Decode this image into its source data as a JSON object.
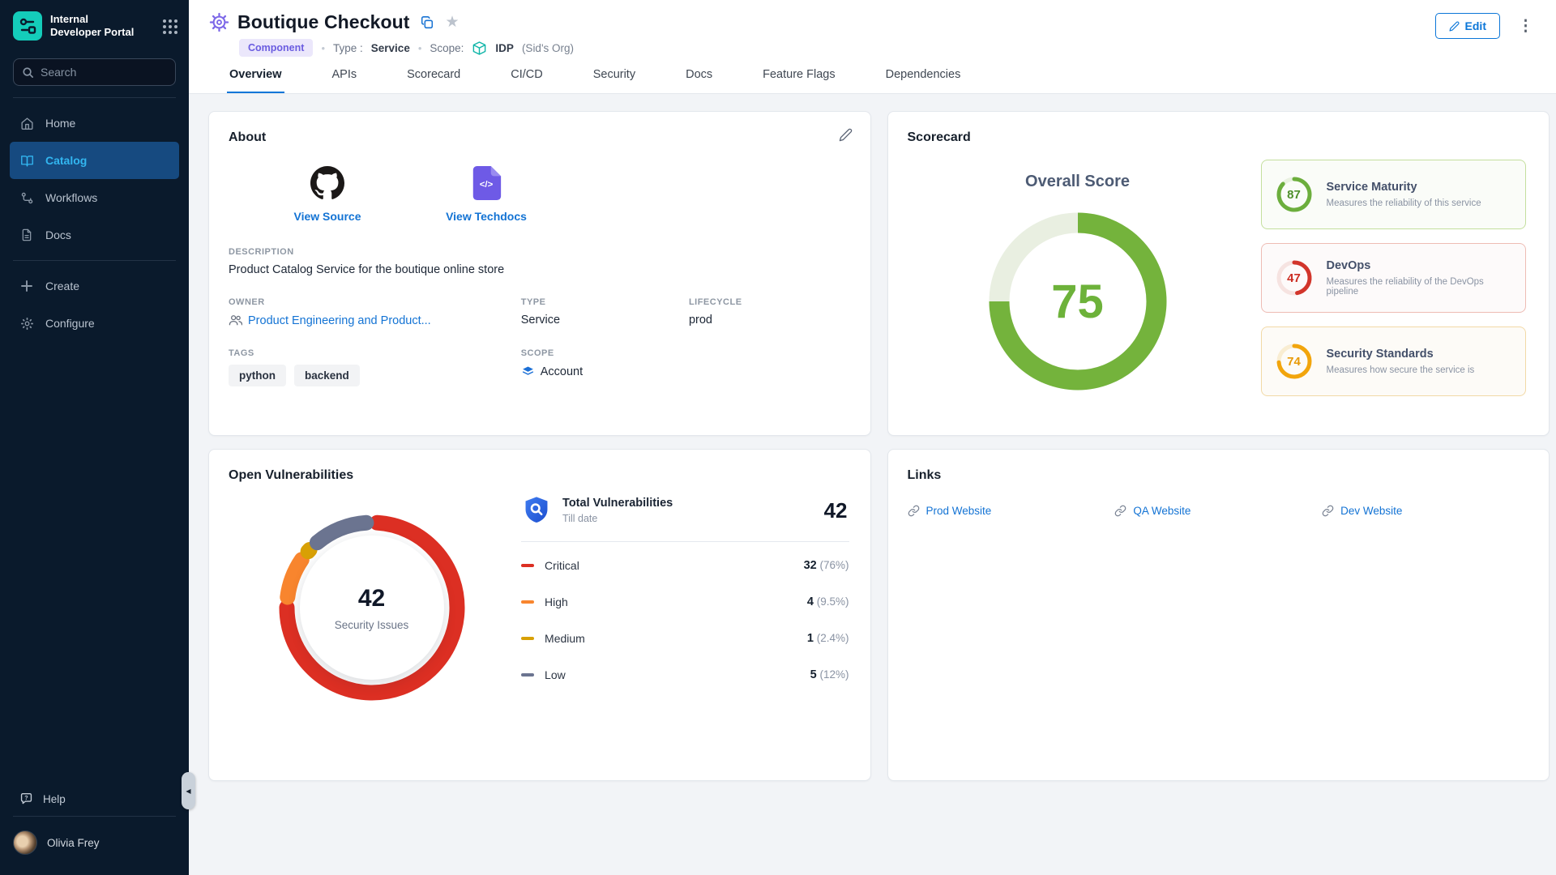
{
  "sidebar": {
    "logo_lines": [
      "Internal",
      "Developer Portal"
    ],
    "search_placeholder": "Search",
    "nav": [
      {
        "label": "Home",
        "active": false
      },
      {
        "label": "Catalog",
        "active": true
      },
      {
        "label": "Workflows",
        "active": false
      },
      {
        "label": "Docs",
        "active": false
      }
    ],
    "actions": [
      {
        "label": "Create"
      },
      {
        "label": "Configure"
      }
    ],
    "help_label": "Help",
    "user_name": "Olivia Frey"
  },
  "header": {
    "title": "Boutique Checkout",
    "kind_badge": "Component",
    "type_label": "Type :",
    "type_value": "Service",
    "scope_label": "Scope:",
    "scope_value": "IDP",
    "scope_org": "(Sid's Org)",
    "edit_label": "Edit"
  },
  "tabs": {
    "items": [
      "Overview",
      "APIs",
      "Scorecard",
      "CI/CD",
      "Security",
      "Docs",
      "Feature Flags",
      "Dependencies"
    ],
    "active_index": 0
  },
  "about": {
    "title": "About",
    "source_label": "View Source",
    "techdocs_label": "View Techdocs",
    "fields": {
      "description_label": "DESCRIPTION",
      "description": "Product Catalog Service for the boutique online store",
      "owner_label": "OWNER",
      "owner": "Product Engineering and Product...",
      "type_label": "TYPE",
      "type": "Service",
      "lifecycle_label": "LIFECYCLE",
      "lifecycle": "prod",
      "tags_label": "TAGS",
      "tags": [
        "python",
        "backend"
      ],
      "scope_label": "SCOPE",
      "scope": "Account"
    }
  },
  "scorecard": {
    "title": "Scorecard",
    "overall_label": "Overall Score",
    "overall": {
      "value": 75,
      "max": 100,
      "color": "#74b33c",
      "track_color": "#e9efe1",
      "text_color": "#6db23a"
    },
    "checks": [
      {
        "name": "Service Maturity",
        "desc": "Measures the reliability of this service",
        "score": 87,
        "ring_color": "#6cae3d",
        "ring_track": "#e9f1e0",
        "text_color": "#4e8f2b",
        "border_color": "#c4df9e",
        "bg": "#fafcf8"
      },
      {
        "name": "DevOps",
        "desc": "Measures the reliability of the DevOps pipeline",
        "score": 47,
        "ring_color": "#d2352b",
        "ring_track": "#f6e3e1",
        "text_color": "#cc2d23",
        "border_color": "#eebcb4",
        "bg": "#fdfafa"
      },
      {
        "name": "Security Standards",
        "desc": "Measures how secure the service is",
        "score": 74,
        "ring_color": "#f2a50c",
        "ring_track": "#f9edd2",
        "text_color": "#e89a06",
        "border_color": "#f2d9a6",
        "bg": "#fdfbf7"
      }
    ]
  },
  "vulnerabilities": {
    "title": "Open Vulnerabilities",
    "center_value": "42",
    "center_label": "Security Issues",
    "total_label": "Total Vulnerabilities",
    "total_sublabel": "Till date",
    "total_value": "42",
    "rows": [
      {
        "label": "Critical",
        "count": "32",
        "pct": "(76%)",
        "share": 76,
        "color": "#dc2f23"
      },
      {
        "label": "High",
        "count": "4",
        "pct": "(9.5%)",
        "share": 9.5,
        "color": "#f8852e"
      },
      {
        "label": "Medium",
        "count": "1",
        "pct": "(2.4%)",
        "share": 2.4,
        "color": "#d8a005"
      },
      {
        "label": "Low",
        "count": "5",
        "pct": "(12%)",
        "share": 12,
        "color": "#6b7490"
      }
    ]
  },
  "links": {
    "title": "Links",
    "items": [
      "Prod Website",
      "QA Website",
      "Dev Website"
    ]
  }
}
